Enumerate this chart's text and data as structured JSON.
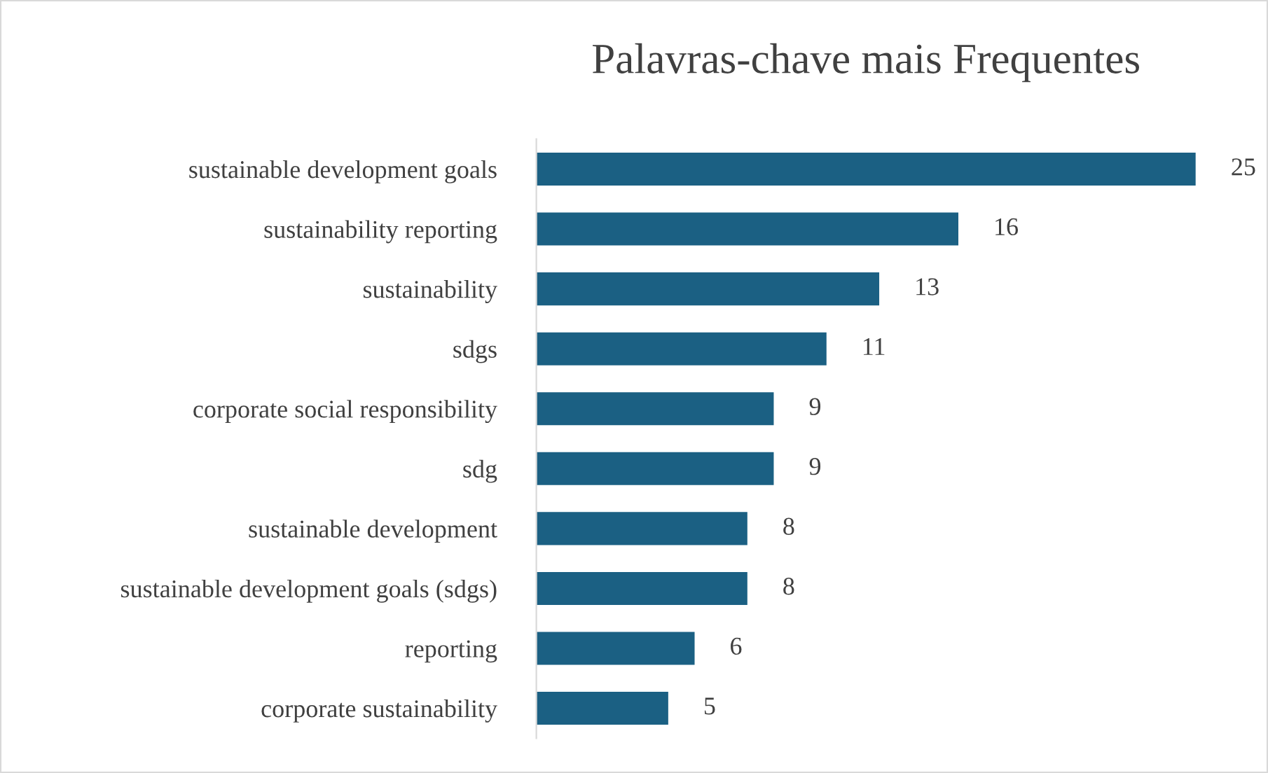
{
  "chart_data": {
    "type": "bar",
    "orientation": "horizontal",
    "title": "Palavras-chave mais Frequentes",
    "categories": [
      "sustainable development goals",
      "sustainability reporting",
      "sustainability",
      "sdgs",
      "corporate social responsibility",
      "sdg",
      "sustainable development",
      "sustainable development goals (sdgs)",
      "reporting",
      "corporate sustainability"
    ],
    "values": [
      25,
      16,
      13,
      11,
      9,
      9,
      8,
      8,
      6,
      5
    ],
    "color": "#1b6083",
    "data_labels": true,
    "grid": false,
    "legend": false
  }
}
